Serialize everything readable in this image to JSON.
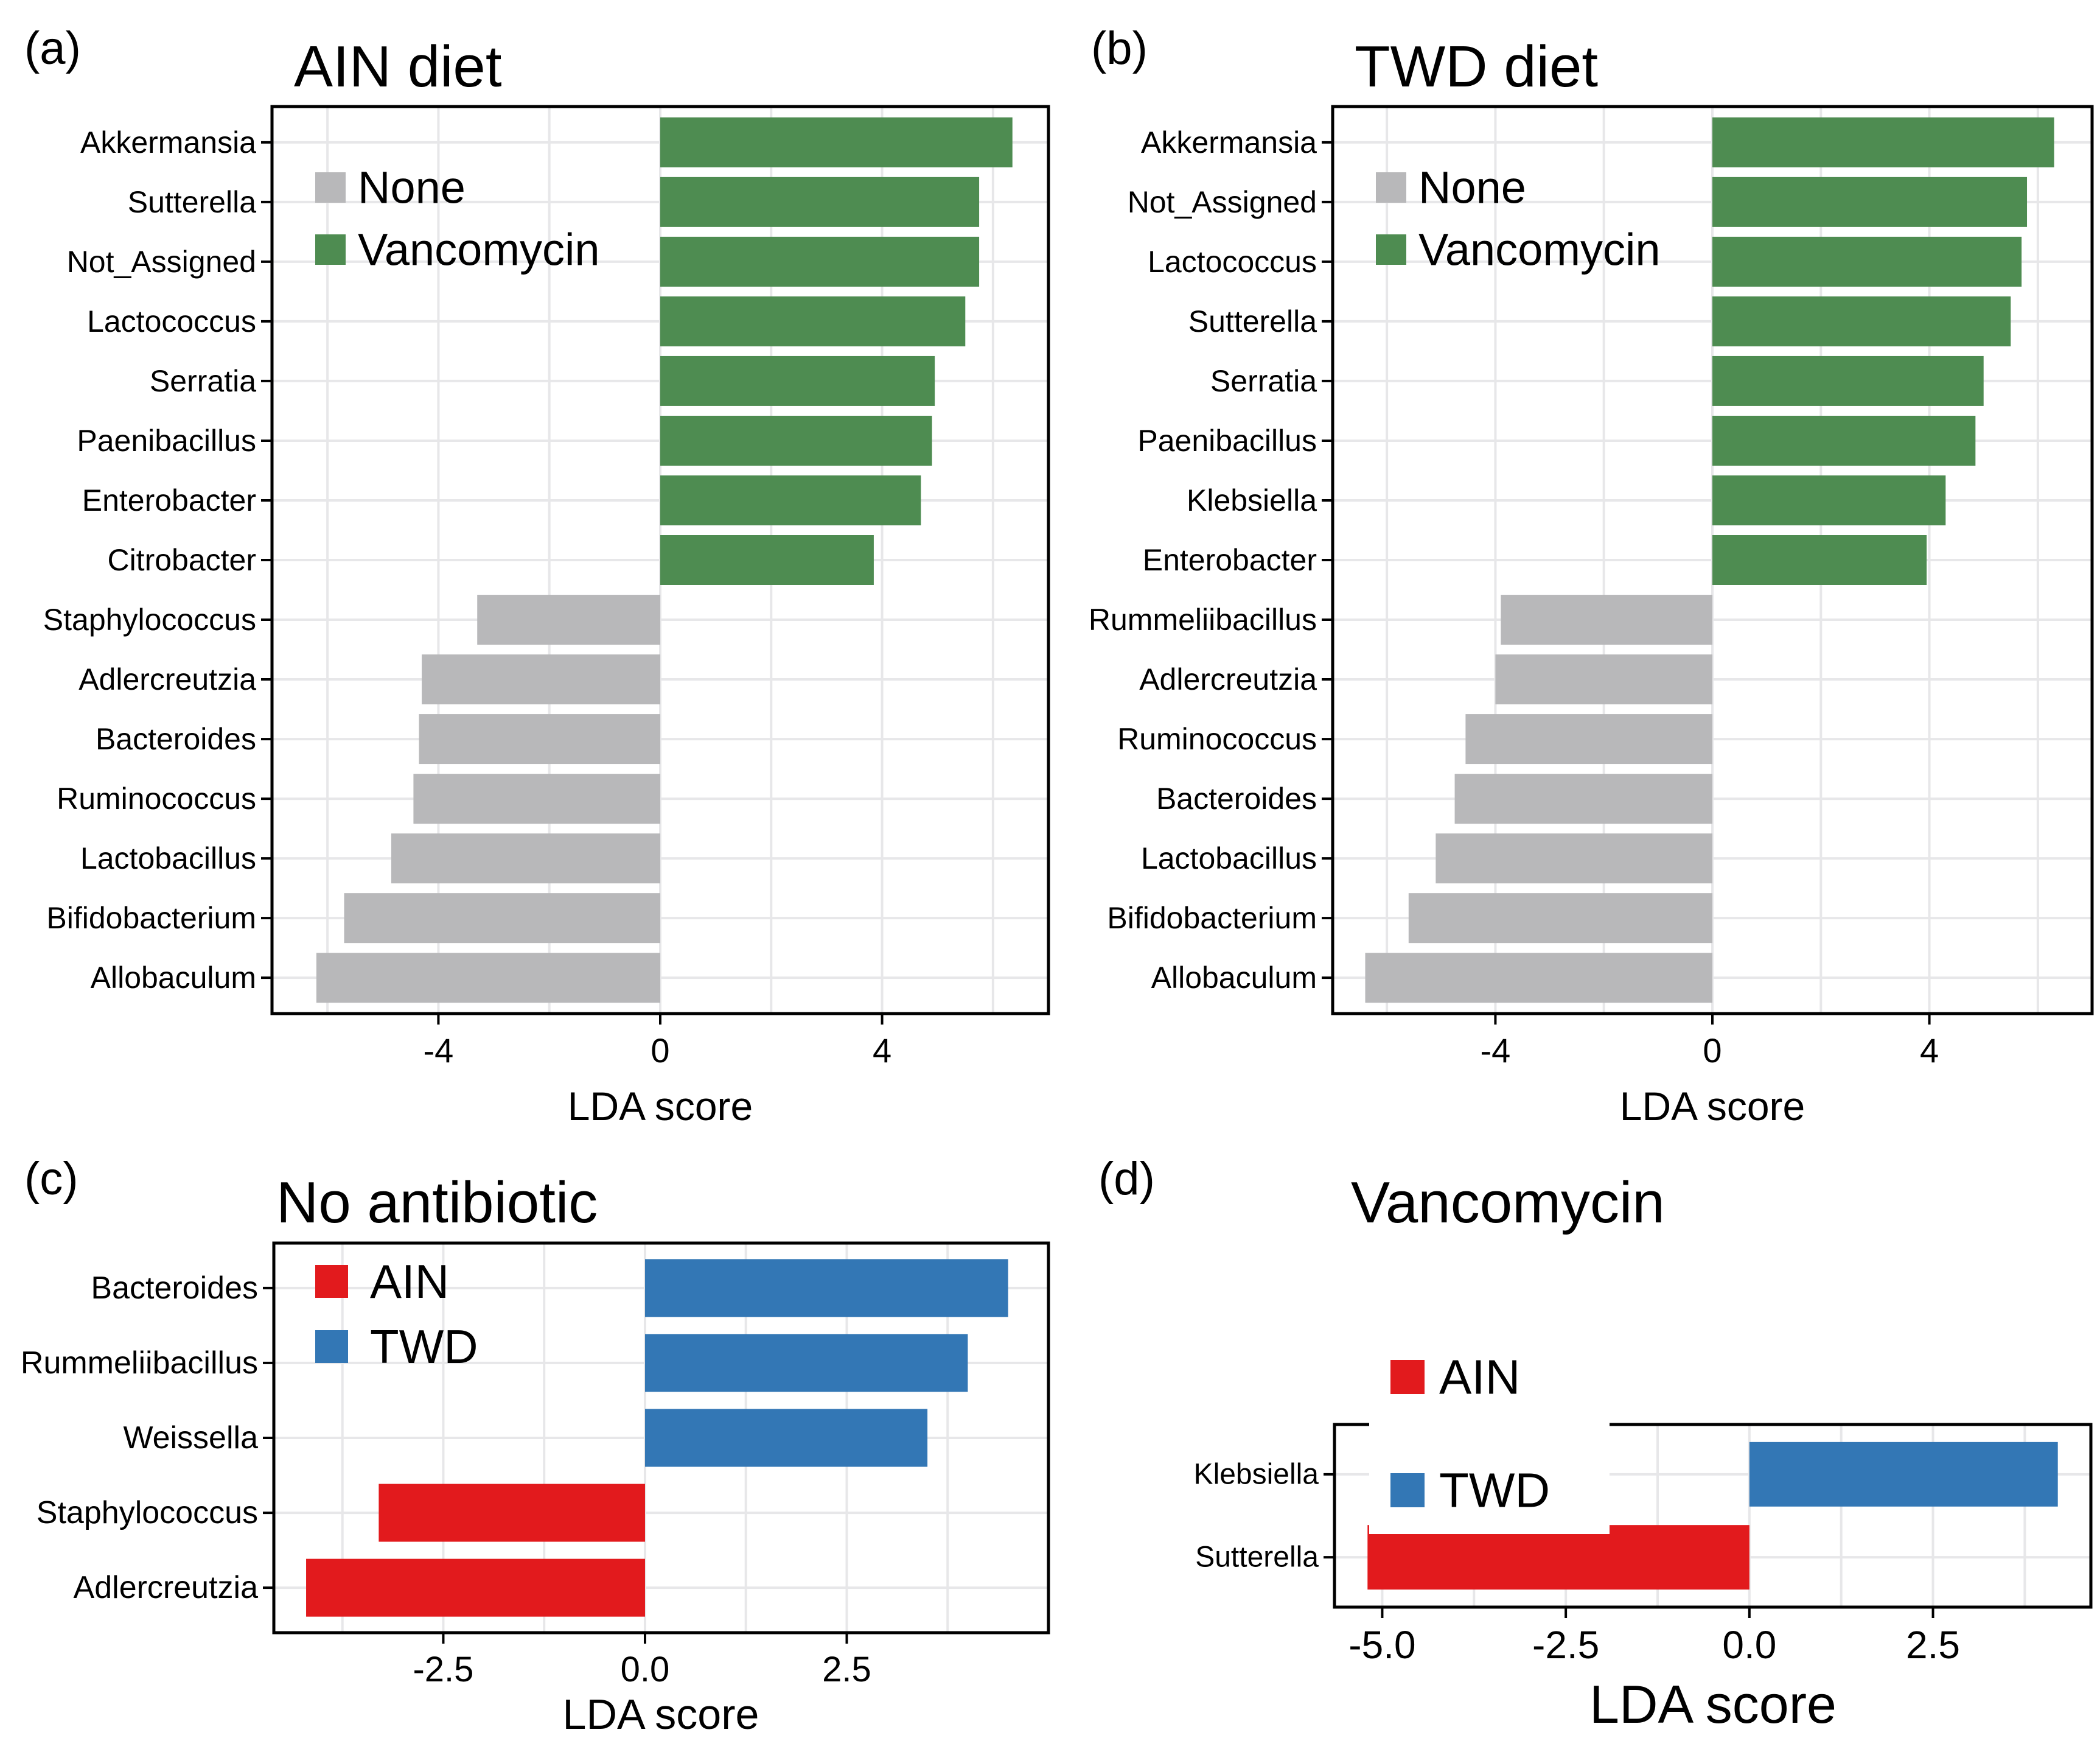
{
  "figure": {
    "description": "LEfSe LDA score bar charts comparing gut microbiota taxa",
    "background": "#ffffff",
    "panel_labels": [
      "(a)",
      "(b)",
      "(c)",
      "(d)"
    ]
  },
  "chart_data": [
    {
      "id": "a",
      "type": "bar",
      "panel_label": "(a)",
      "title": "AIN diet",
      "xlabel": "LDA score",
      "orientation": "horizontal",
      "legend_position": "top-left-inside",
      "legend": [
        {
          "label": "None",
          "color": "#b8b8ba"
        },
        {
          "label": "Vancomycin",
          "color": "#4e8c51"
        }
      ],
      "group_colors": {
        "None": "#b8b8ba",
        "Vancomycin": "#4e8c51"
      },
      "categories": [
        "Akkermansia",
        "Sutterella",
        "Not_Assigned",
        "Lactococcus",
        "Serratia",
        "Paenibacillus",
        "Enterobacter",
        "Citrobacter",
        "Staphylococcus",
        "Adlercreutzia",
        "Bacteroides",
        "Ruminococcus",
        "Lactobacillus",
        "Bifidobacterium",
        "Allobaculum"
      ],
      "values": [
        6.35,
        5.75,
        5.75,
        5.5,
        4.95,
        4.9,
        4.7,
        3.85,
        -3.3,
        -4.3,
        -4.35,
        -4.45,
        -4.85,
        -5.7,
        -6.2
      ],
      "groups": [
        "Vancomycin",
        "Vancomycin",
        "Vancomycin",
        "Vancomycin",
        "Vancomycin",
        "Vancomycin",
        "Vancomycin",
        "Vancomycin",
        "None",
        "None",
        "None",
        "None",
        "None",
        "None",
        "None"
      ],
      "xlim": [
        -7,
        7
      ],
      "xticks": [
        -4,
        0,
        4
      ],
      "xtick_labels": [
        "-4",
        "0",
        "4"
      ],
      "grid_values": [
        -6,
        -4,
        -2,
        0,
        2,
        4,
        6
      ],
      "grid": true
    },
    {
      "id": "b",
      "type": "bar",
      "panel_label": "(b)",
      "title": "TWD diet",
      "xlabel": "LDA score",
      "orientation": "horizontal",
      "legend_position": "top-left-inside",
      "legend": [
        {
          "label": "None",
          "color": "#b8b8ba"
        },
        {
          "label": "Vancomycin",
          "color": "#4e8c51"
        }
      ],
      "group_colors": {
        "None": "#b8b8ba",
        "Vancomycin": "#4e8c51"
      },
      "categories": [
        "Akkermansia",
        "Not_Assigned",
        "Lactococcus",
        "Sutterella",
        "Serratia",
        "Paenibacillus",
        "Klebsiella",
        "Enterobacter",
        "Rummeliibacillus",
        "Adlercreutzia",
        "Ruminococcus",
        "Bacteroides",
        "Lactobacillus",
        "Bifidobacterium",
        "Allobaculum"
      ],
      "values": [
        6.3,
        5.8,
        5.7,
        5.5,
        5.0,
        4.85,
        4.3,
        3.95,
        -3.9,
        -4.0,
        -4.55,
        -4.75,
        -5.1,
        -5.6,
        -6.4
      ],
      "groups": [
        "Vancomycin",
        "Vancomycin",
        "Vancomycin",
        "Vancomycin",
        "Vancomycin",
        "Vancomycin",
        "Vancomycin",
        "Vancomycin",
        "None",
        "None",
        "None",
        "None",
        "None",
        "None",
        "None"
      ],
      "xlim": [
        -7,
        7
      ],
      "xticks": [
        -4,
        0,
        4
      ],
      "xtick_labels": [
        "-4",
        "0",
        "4"
      ],
      "grid_values": [
        -6,
        -4,
        -2,
        0,
        2,
        4,
        6
      ],
      "grid": true
    },
    {
      "id": "c",
      "type": "bar",
      "panel_label": "(c)",
      "title": "No antibiotic",
      "xlabel": "LDA score",
      "orientation": "horizontal",
      "legend_position": "top-left-inside",
      "legend": [
        {
          "label": "AIN",
          "color": "#e21a1d"
        },
        {
          "label": "TWD",
          "color": "#3377b5"
        }
      ],
      "group_colors": {
        "AIN": "#e21a1d",
        "TWD": "#3377b5"
      },
      "categories": [
        "Bacteroides",
        "Rummeliibacillus",
        "Weissella",
        "Staphylococcus",
        "Adlercreutzia"
      ],
      "values": [
        4.5,
        4.0,
        3.5,
        -3.3,
        -4.2
      ],
      "groups": [
        "TWD",
        "TWD",
        "TWD",
        "AIN",
        "AIN"
      ],
      "xlim": [
        -4.6,
        5.0
      ],
      "xticks": [
        -2.5,
        0,
        2.5
      ],
      "xtick_labels": [
        "-2.5",
        "0.0",
        "2.5"
      ],
      "grid_values": [
        -3.75,
        -2.5,
        -1.25,
        0,
        1.25,
        2.5,
        3.75
      ],
      "grid": true
    },
    {
      "id": "d",
      "type": "bar",
      "panel_label": "(d)",
      "title": "Vancomycin",
      "xlabel": "LDA score",
      "orientation": "horizontal",
      "legend_position": "top-left-inside-overlapping-border",
      "legend": [
        {
          "label": "AIN",
          "color": "#e21a1d"
        },
        {
          "label": "TWD",
          "color": "#3377b5"
        }
      ],
      "group_colors": {
        "AIN": "#e21a1d",
        "TWD": "#3377b5"
      },
      "categories": [
        "Klebsiella",
        "Sutterella"
      ],
      "values": [
        4.2,
        -5.2
      ],
      "groups": [
        "TWD",
        "AIN"
      ],
      "xlim": [
        -5.65,
        4.65
      ],
      "xticks": [
        -5.0,
        -2.5,
        0,
        2.5
      ],
      "xtick_labels": [
        "-5.0",
        "-2.5",
        "0.0",
        "2.5"
      ],
      "grid_values": [
        -5.0,
        -3.75,
        -2.5,
        -1.25,
        0,
        1.25,
        2.5,
        3.75
      ],
      "grid": true
    }
  ]
}
